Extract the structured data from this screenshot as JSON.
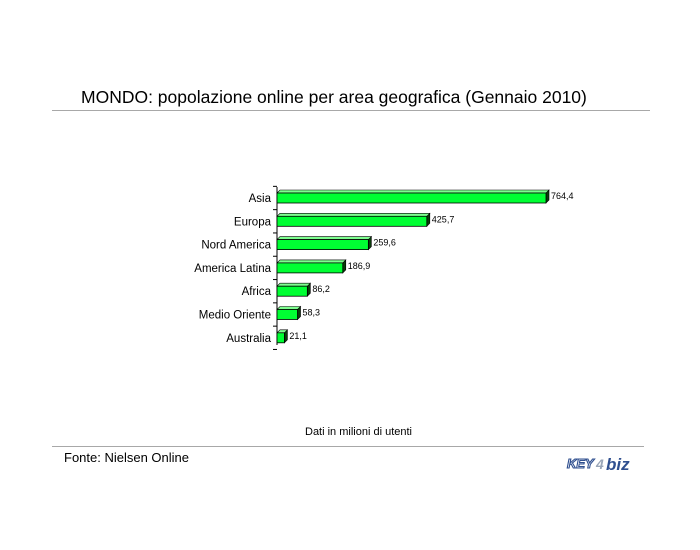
{
  "header": {
    "title": "MONDO: popolazione online per area geografica (Gennaio 2010)"
  },
  "chart_data": {
    "type": "bar",
    "orientation": "horizontal",
    "title": "MONDO: popolazione online per area geografica (Gennaio 2010)",
    "categories": [
      "Asia",
      "Europa",
      "Nord America",
      "America Latina",
      "Africa",
      "Medio Oriente",
      "Australia"
    ],
    "values": [
      764.4,
      425.7,
      259.6,
      186.9,
      86.2,
      58.3,
      21.1
    ],
    "data_labels": [
      "764,4",
      "425,7",
      "259,6",
      "186,9",
      "86,2",
      "58,3",
      "21,1"
    ],
    "xlim": [
      0,
      764.4
    ],
    "grid": false,
    "legend": "none",
    "bar_color": "#00ff33",
    "bar_edge_color": "#000000",
    "shadow_color": "#0a3d0a"
  },
  "footer": {
    "note": "Dati in milioni di utenti",
    "source": "Fonte: Nielsen Online",
    "logo_text": "KEY4biz"
  },
  "colors": {
    "logo_blue": "#2f4f8f",
    "logo_gray": "#9aa6b8"
  }
}
